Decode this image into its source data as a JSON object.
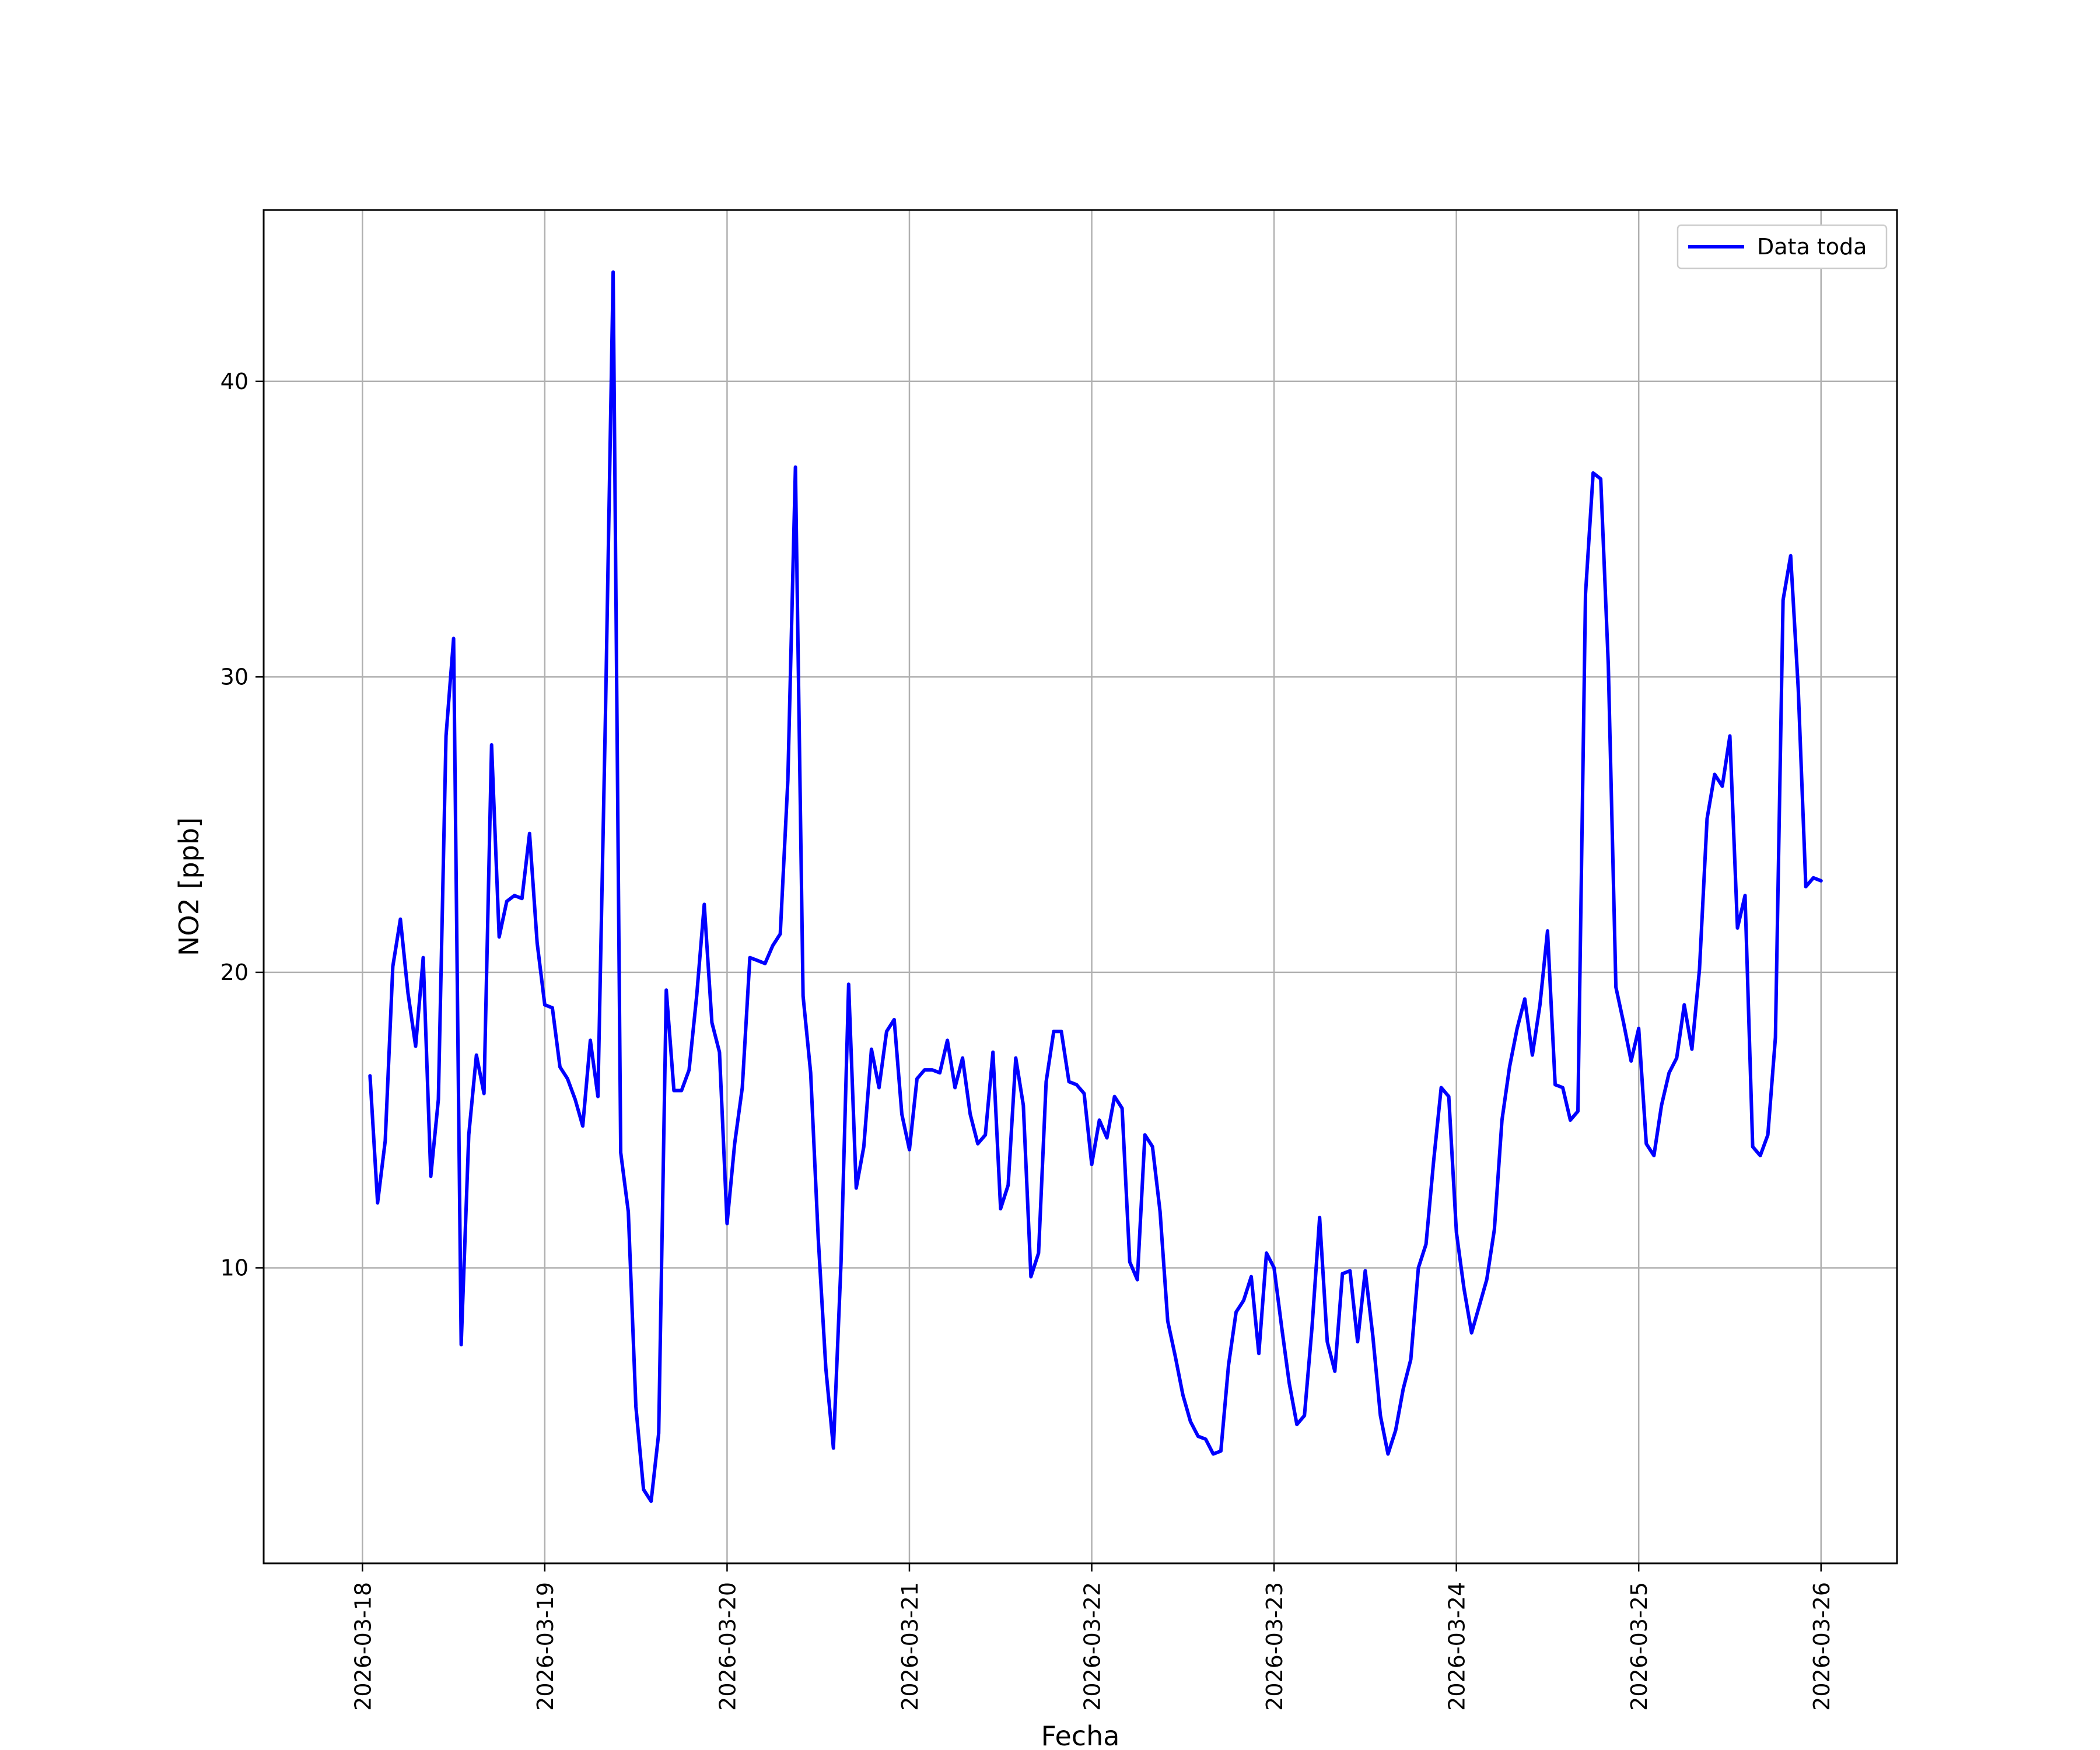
{
  "chart_data": {
    "type": "line",
    "title": "",
    "xlabel": "Fecha",
    "ylabel": "NO2 [ppb]",
    "xlim": [
      "2026-03-17T11:00",
      "2026-03-26T10:00"
    ],
    "ylim": [
      0,
      45.8
    ],
    "x_ticks": [
      "2026-03-18",
      "2026-03-19",
      "2026-03-20",
      "2026-03-21",
      "2026-03-22",
      "2026-03-23",
      "2026-03-24",
      "2026-03-25",
      "2026-03-26"
    ],
    "y_ticks": [
      10,
      20,
      30,
      40
    ],
    "y_tick_labels": [
      "10",
      "20",
      "30",
      "40"
    ],
    "grid": true,
    "legend_position": "top-right",
    "line_color": "#0000ff",
    "series": [
      {
        "name": "Data toda",
        "x": [
          "2026-03-18T01:00",
          "2026-03-18T02:00",
          "2026-03-18T03:00",
          "2026-03-18T04:00",
          "2026-03-18T05:00",
          "2026-03-18T06:00",
          "2026-03-18T07:00",
          "2026-03-18T08:00",
          "2026-03-18T09:00",
          "2026-03-18T10:00",
          "2026-03-18T11:00",
          "2026-03-18T12:00",
          "2026-03-18T13:00",
          "2026-03-18T14:00",
          "2026-03-18T15:00",
          "2026-03-18T16:00",
          "2026-03-18T17:00",
          "2026-03-18T18:00",
          "2026-03-18T19:00",
          "2026-03-18T20:00",
          "2026-03-18T21:00",
          "2026-03-18T22:00",
          "2026-03-18T23:00",
          "2026-03-19T00:00",
          "2026-03-19T01:00",
          "2026-03-19T02:00",
          "2026-03-19T03:00",
          "2026-03-19T04:00",
          "2026-03-19T05:00",
          "2026-03-19T06:00",
          "2026-03-19T07:00",
          "2026-03-19T08:00",
          "2026-03-19T09:00",
          "2026-03-19T10:00",
          "2026-03-19T11:00",
          "2026-03-19T12:00",
          "2026-03-19T13:00",
          "2026-03-19T14:00",
          "2026-03-19T15:00",
          "2026-03-19T16:00",
          "2026-03-19T17:00",
          "2026-03-19T18:00",
          "2026-03-19T19:00",
          "2026-03-19T20:00",
          "2026-03-19T21:00",
          "2026-03-19T22:00",
          "2026-03-19T23:00",
          "2026-03-20T00:00",
          "2026-03-20T01:00",
          "2026-03-20T02:00",
          "2026-03-20T03:00",
          "2026-03-20T04:00",
          "2026-03-20T05:00",
          "2026-03-20T06:00",
          "2026-03-20T07:00",
          "2026-03-20T08:00",
          "2026-03-20T09:00",
          "2026-03-20T10:00",
          "2026-03-20T11:00",
          "2026-03-20T12:00",
          "2026-03-20T13:00",
          "2026-03-20T14:00",
          "2026-03-20T15:00",
          "2026-03-20T16:00",
          "2026-03-20T17:00",
          "2026-03-20T18:00",
          "2026-03-20T19:00",
          "2026-03-20T20:00",
          "2026-03-20T21:00",
          "2026-03-20T22:00",
          "2026-03-20T23:00",
          "2026-03-21T00:00",
          "2026-03-21T01:00",
          "2026-03-21T02:00",
          "2026-03-21T03:00",
          "2026-03-21T04:00",
          "2026-03-21T05:00",
          "2026-03-21T06:00",
          "2026-03-21T07:00",
          "2026-03-21T08:00",
          "2026-03-21T09:00",
          "2026-03-21T10:00",
          "2026-03-21T11:00",
          "2026-03-21T12:00",
          "2026-03-21T13:00",
          "2026-03-21T14:00",
          "2026-03-21T15:00",
          "2026-03-21T16:00",
          "2026-03-21T17:00",
          "2026-03-21T18:00",
          "2026-03-21T19:00",
          "2026-03-21T20:00",
          "2026-03-21T21:00",
          "2026-03-21T22:00",
          "2026-03-21T23:00",
          "2026-03-22T00:00",
          "2026-03-22T01:00",
          "2026-03-22T02:00",
          "2026-03-22T03:00",
          "2026-03-22T04:00",
          "2026-03-22T05:00",
          "2026-03-22T06:00",
          "2026-03-22T07:00",
          "2026-03-22T08:00",
          "2026-03-22T09:00",
          "2026-03-22T10:00",
          "2026-03-22T11:00",
          "2026-03-22T12:00",
          "2026-03-22T13:00",
          "2026-03-22T14:00",
          "2026-03-22T15:00",
          "2026-03-22T16:00",
          "2026-03-22T17:00",
          "2026-03-22T18:00",
          "2026-03-22T19:00",
          "2026-03-22T20:00",
          "2026-03-22T21:00",
          "2026-03-22T22:00",
          "2026-03-22T23:00",
          "2026-03-23T00:00",
          "2026-03-23T01:00",
          "2026-03-23T02:00",
          "2026-03-23T03:00",
          "2026-03-23T04:00",
          "2026-03-23T05:00",
          "2026-03-23T06:00",
          "2026-03-23T07:00",
          "2026-03-23T08:00",
          "2026-03-23T09:00",
          "2026-03-23T10:00",
          "2026-03-23T11:00",
          "2026-03-23T12:00",
          "2026-03-23T13:00",
          "2026-03-23T14:00",
          "2026-03-23T15:00",
          "2026-03-23T16:00",
          "2026-03-23T17:00",
          "2026-03-23T18:00",
          "2026-03-23T19:00",
          "2026-03-23T20:00",
          "2026-03-23T21:00",
          "2026-03-23T22:00",
          "2026-03-23T23:00",
          "2026-03-24T00:00",
          "2026-03-24T01:00",
          "2026-03-24T02:00",
          "2026-03-24T03:00",
          "2026-03-24T04:00",
          "2026-03-24T05:00",
          "2026-03-24T06:00",
          "2026-03-24T07:00",
          "2026-03-24T08:00",
          "2026-03-24T09:00",
          "2026-03-24T10:00",
          "2026-03-24T11:00",
          "2026-03-24T12:00",
          "2026-03-24T13:00",
          "2026-03-24T14:00",
          "2026-03-24T15:00",
          "2026-03-24T16:00",
          "2026-03-24T17:00",
          "2026-03-24T18:00",
          "2026-03-24T19:00",
          "2026-03-24T20:00",
          "2026-03-24T21:00",
          "2026-03-24T22:00",
          "2026-03-24T23:00",
          "2026-03-25T00:00",
          "2026-03-25T01:00",
          "2026-03-25T02:00",
          "2026-03-25T03:00",
          "2026-03-25T04:00",
          "2026-03-25T05:00",
          "2026-03-25T06:00",
          "2026-03-25T07:00",
          "2026-03-25T08:00",
          "2026-03-25T09:00",
          "2026-03-25T10:00",
          "2026-03-25T11:00",
          "2026-03-25T12:00",
          "2026-03-25T13:00",
          "2026-03-25T14:00",
          "2026-03-25T15:00",
          "2026-03-25T16:00",
          "2026-03-25T17:00",
          "2026-03-25T18:00",
          "2026-03-25T19:00",
          "2026-03-25T20:00",
          "2026-03-25T21:00",
          "2026-03-25T22:00",
          "2026-03-25T23:00",
          "2026-03-26T00:00"
        ],
        "y": [
          16.5,
          12.2,
          14.3,
          20.2,
          21.8,
          19.3,
          17.5,
          20.5,
          13.1,
          15.7,
          28.0,
          31.3,
          7.4,
          14.5,
          17.2,
          15.9,
          27.7,
          21.2,
          22.4,
          22.6,
          22.5,
          24.7,
          21.0,
          18.9,
          18.8,
          16.8,
          16.4,
          15.7,
          14.8,
          17.7,
          15.8,
          28.8,
          43.7,
          13.9,
          11.9,
          5.3,
          2.5,
          2.1,
          4.4,
          19.4,
          16.0,
          16.0,
          16.7,
          19.2,
          22.3,
          18.3,
          17.3,
          11.5,
          14.2,
          16.1,
          20.5,
          20.4,
          20.3,
          20.9,
          21.3,
          26.5,
          37.1,
          19.2,
          16.6,
          11.0,
          6.6,
          3.9,
          10.2,
          19.6,
          12.7,
          14.1,
          17.4,
          16.1,
          18.0,
          18.4,
          15.2,
          14.0,
          16.4,
          16.7,
          16.7,
          16.6,
          17.7,
          16.1,
          17.1,
          15.2,
          14.2,
          14.5,
          17.3,
          12.0,
          12.8,
          17.1,
          15.5,
          9.7,
          10.5,
          16.3,
          18.0,
          18.0,
          16.3,
          16.2,
          15.9,
          13.5,
          15.0,
          14.4,
          15.8,
          15.4,
          10.2,
          9.6,
          14.5,
          14.1,
          11.9,
          8.2,
          7.0,
          5.7,
          4.8,
          4.3,
          4.2,
          3.7,
          3.8,
          6.7,
          8.5,
          8.9,
          9.7,
          7.1,
          10.5,
          10.0,
          8.0,
          6.1,
          4.7,
          5.0,
          8.0,
          11.7,
          7.5,
          6.5,
          9.8,
          9.9,
          7.5,
          9.9,
          7.7,
          5.0,
          3.7,
          4.5,
          5.9,
          6.9,
          10.0,
          10.8,
          13.6,
          16.1,
          15.8,
          11.2,
          9.3,
          7.8,
          8.7,
          9.6,
          11.3,
          15.0,
          16.8,
          18.1,
          19.1,
          17.2,
          18.9,
          21.4,
          16.2,
          16.1,
          15.0,
          15.3,
          32.8,
          36.9,
          36.7,
          30.4,
          19.5,
          18.3,
          17.0,
          18.1,
          14.2,
          13.8,
          15.5,
          16.6,
          17.1,
          18.9,
          17.4,
          20.1,
          25.2,
          26.7,
          26.3,
          28.0,
          21.5,
          22.6,
          14.1,
          13.8,
          14.5,
          17.8,
          32.6,
          34.1,
          29.6,
          22.9,
          23.2,
          23.1
        ]
      }
    ]
  }
}
